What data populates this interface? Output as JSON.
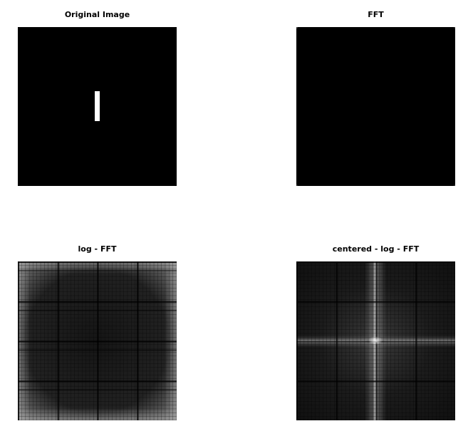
{
  "panels": [
    {
      "title": "Original Image"
    },
    {
      "title": "FFT"
    },
    {
      "title": "log - FFT"
    },
    {
      "title": "centered - log - FFT"
    }
  ],
  "colors": {
    "background": "#ffffff",
    "image_black": "#000000",
    "bar_white": "#ffffff"
  }
}
